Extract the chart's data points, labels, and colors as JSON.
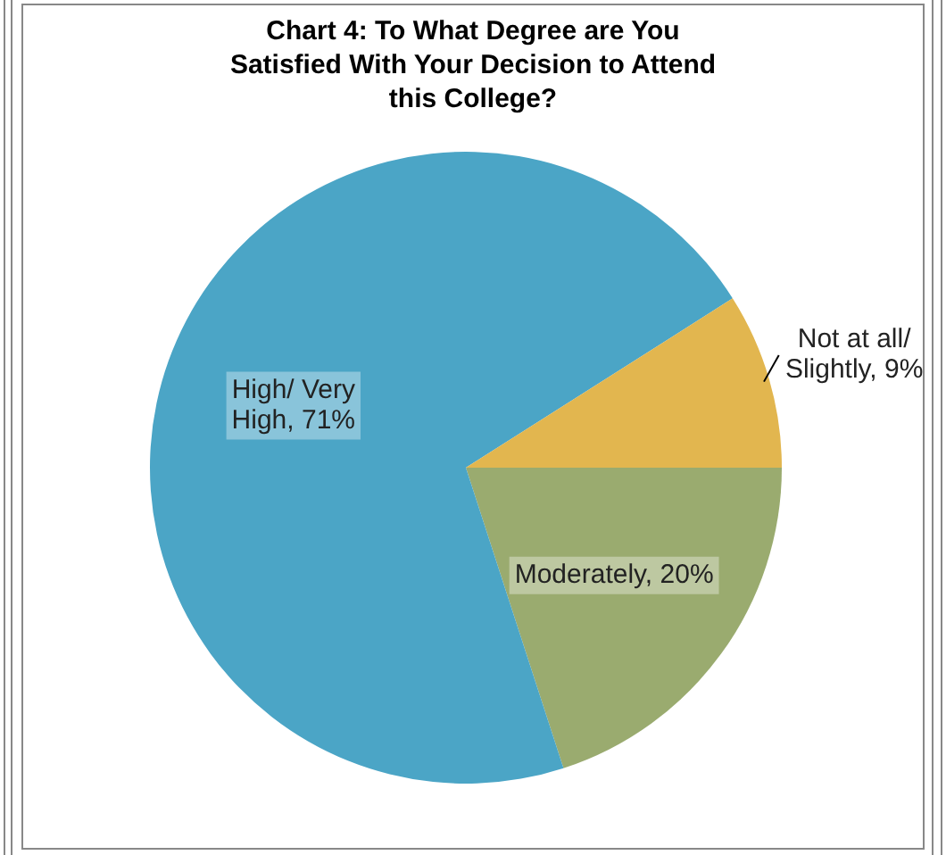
{
  "chart_data": {
    "type": "pie",
    "title": "Chart 4: To What Degree are You Satisfied With Your Decision to Attend this College?",
    "categories": [
      "Moderately",
      "High/ Very High",
      "Not at all/ Slightly"
    ],
    "values": [
      20,
      71,
      9
    ],
    "value_labels": [
      "20%",
      "71%",
      "9%"
    ],
    "colors": [
      "#9aab6f",
      "#4ba5c6",
      "#e2b64f"
    ],
    "legend": false
  }
}
